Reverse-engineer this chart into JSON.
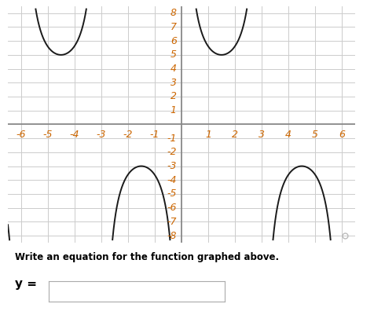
{
  "title": "",
  "xlim": [
    -6.5,
    6.5
  ],
  "ylim": [
    -8.5,
    8.5
  ],
  "xticks": [
    -6,
    -5,
    -4,
    -3,
    -2,
    -1,
    1,
    2,
    3,
    4,
    5,
    6
  ],
  "yticks": [
    -8,
    -7,
    -6,
    -5,
    -4,
    -3,
    -2,
    -1,
    1,
    2,
    3,
    4,
    5,
    6,
    7,
    8
  ],
  "curve_color": "#1a1a1a",
  "grid_color": "#cccccc",
  "axis_color": "#888888",
  "bg_color": "#ffffff",
  "tick_label_color": "#cc6600",
  "label_fontsize": 9,
  "curve_linewidth": 1.4,
  "amplitude": 4,
  "vertical_shift": 1,
  "period_denom": 3,
  "text_below": "Write an equation for the function graphed above.",
  "text_y_label": "y =",
  "box_color": "#ffffff",
  "box_edge": "#aaaaaa"
}
